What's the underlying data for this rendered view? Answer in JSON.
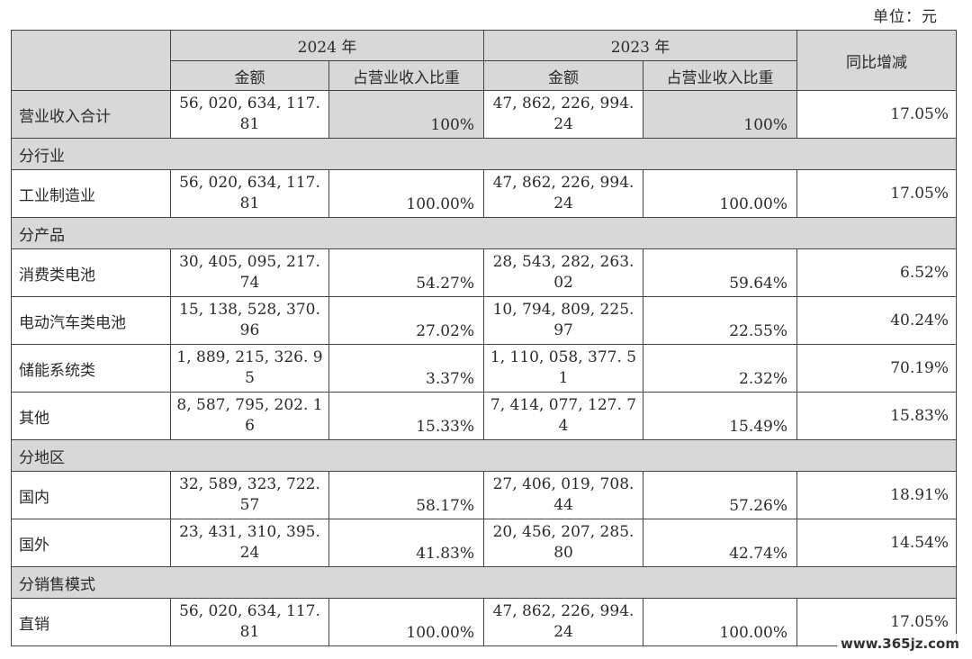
{
  "unit_label": "单位：元",
  "headers": {
    "year_2024": "2024 年",
    "year_2023": "2023 年",
    "amount": "金额",
    "share": "占营业收入比重",
    "yoy": "同比增减"
  },
  "rows": {
    "total": {
      "label": "营业收入合计",
      "amt24_a": "56, 020, 634, 117.",
      "amt24_b": "81",
      "pct24": "100%",
      "amt23_a": "47, 862, 226, 994.",
      "amt23_b": "24",
      "pct23": "100%",
      "yoy": "17.05%"
    },
    "group_industry": "分行业",
    "industry": {
      "label": "工业制造业",
      "amt24_a": "56, 020, 634, 117.",
      "amt24_b": "81",
      "pct24": "100.00%",
      "amt23_a": "47, 862, 226, 994.",
      "amt23_b": "24",
      "pct23": "100.00%",
      "yoy": "17.05%"
    },
    "group_product": "分产品",
    "consumer": {
      "label": "消费类电池",
      "amt24_a": "30, 405, 095, 217.",
      "amt24_b": "74",
      "pct24": "54.27%",
      "amt23_a": "28, 543, 282, 263.",
      "amt23_b": "02",
      "pct23": "59.64%",
      "yoy": "6.52%"
    },
    "ev": {
      "label": "电动汽车类电池",
      "amt24_a": "15, 138, 528, 370.",
      "amt24_b": "96",
      "pct24": "27.02%",
      "amt23_a": "10, 794, 809, 225.",
      "amt23_b": "97",
      "pct23": "22.55%",
      "yoy": "40.24%"
    },
    "storage": {
      "label": "储能系统类",
      "amt24_a": "1, 889, 215, 326. 9",
      "amt24_b": "5",
      "pct24": "3.37%",
      "amt23_a": "1, 110, 058, 377. 5",
      "amt23_b": "1",
      "pct23": "2.32%",
      "yoy": "70.19%"
    },
    "other": {
      "label": "其他",
      "amt24_a": "8, 587, 795, 202. 1",
      "amt24_b": "6",
      "pct24": "15.33%",
      "amt23_a": "7, 414, 077, 127. 7",
      "amt23_b": "4",
      "pct23": "15.49%",
      "yoy": "15.83%"
    },
    "group_region": "分地区",
    "domestic": {
      "label": "国内",
      "amt24_a": "32, 589, 323, 722.",
      "amt24_b": "57",
      "pct24": "58.17%",
      "amt23_a": "27, 406, 019, 708.",
      "amt23_b": "44",
      "pct23": "57.26%",
      "yoy": "18.91%"
    },
    "overseas": {
      "label": "国外",
      "amt24_a": "23, 431, 310, 395.",
      "amt24_b": "24",
      "pct24": "41.83%",
      "amt23_a": "20, 456, 207, 285.",
      "amt23_b": "80",
      "pct23": "42.74%",
      "yoy": "14.54%"
    },
    "group_sales": "分销售模式",
    "direct": {
      "label": "直销",
      "amt24_a": "56, 020, 634, 117.",
      "amt24_b": "81",
      "pct24": "100.00%",
      "amt23_a": "47, 862, 226, 994.",
      "amt23_b": "24",
      "pct23": "100.00%",
      "yoy": "17.05%"
    }
  },
  "watermark": "www.365jz.com"
}
